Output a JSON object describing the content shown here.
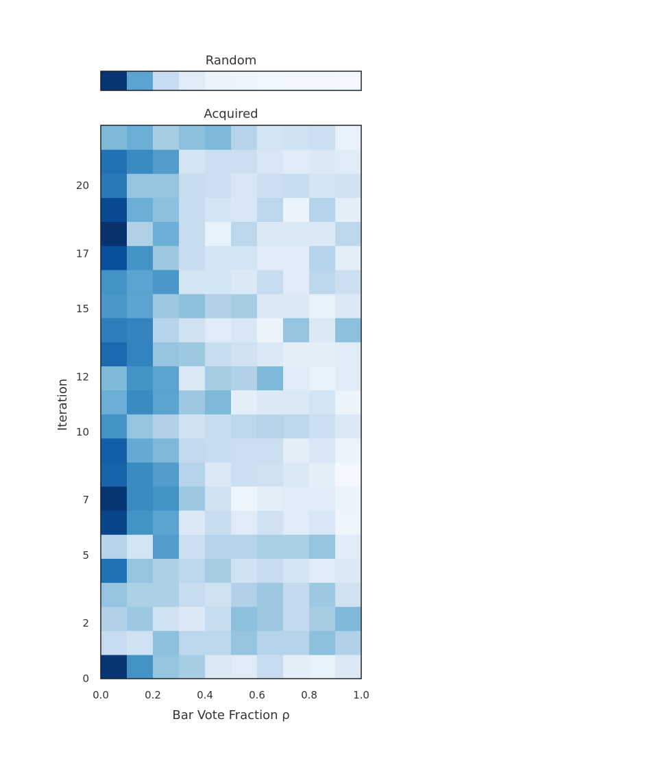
{
  "chart_data": [
    {
      "type": "heatmap",
      "title": "Random",
      "x_edges": [
        0.0,
        0.1,
        0.2,
        0.3,
        0.4,
        0.5,
        0.6,
        0.7,
        0.8,
        0.9,
        1.0
      ],
      "rows": [
        [
          0.98,
          0.55,
          0.25,
          0.12,
          0.06,
          0.05,
          0.04,
          0.03,
          0.03,
          0.02
        ]
      ],
      "colormap": "Blues"
    },
    {
      "type": "heatmap",
      "title": "Acquired",
      "xlabel": "Bar Vote Fraction ρ",
      "ylabel": "Iteration",
      "x_edges": [
        0.0,
        0.1,
        0.2,
        0.3,
        0.4,
        0.5,
        0.6,
        0.7,
        0.8,
        0.9,
        1.0
      ],
      "xlim": [
        0.0,
        1.0
      ],
      "ylim": [
        0,
        22
      ],
      "xticks": [
        "0.0",
        "0.2",
        "0.4",
        "0.6",
        "0.8",
        "1.0"
      ],
      "xtick_values": [
        0.0,
        0.2,
        0.4,
        0.6,
        0.8,
        1.0
      ],
      "yticks": [
        "0",
        "2",
        "5",
        "7",
        "10",
        "12",
        "15",
        "17",
        "20"
      ],
      "ytick_values": [
        0,
        2.2,
        4.9,
        7.1,
        9.8,
        12,
        14.7,
        16.9,
        19.6
      ],
      "colormap": "Blues",
      "rows": [
        [
          0.98,
          0.62,
          0.4,
          0.35,
          0.15,
          0.12,
          0.25,
          0.1,
          0.08,
          0.14
        ],
        [
          0.25,
          0.2,
          0.42,
          0.28,
          0.28,
          0.4,
          0.3,
          0.3,
          0.42,
          0.32
        ],
        [
          0.32,
          0.38,
          0.2,
          0.14,
          0.24,
          0.42,
          0.38,
          0.26,
          0.35,
          0.45
        ],
        [
          0.4,
          0.33,
          0.33,
          0.24,
          0.2,
          0.32,
          0.38,
          0.26,
          0.38,
          0.2
        ],
        [
          0.75,
          0.4,
          0.33,
          0.28,
          0.35,
          0.2,
          0.24,
          0.18,
          0.12,
          0.14
        ],
        [
          0.3,
          0.18,
          0.58,
          0.22,
          0.3,
          0.3,
          0.34,
          0.34,
          0.4,
          0.12
        ],
        [
          0.92,
          0.62,
          0.55,
          0.14,
          0.24,
          0.12,
          0.2,
          0.12,
          0.16,
          0.05
        ],
        [
          0.98,
          0.65,
          0.62,
          0.38,
          0.2,
          0.05,
          0.1,
          0.12,
          0.12,
          0.06
        ],
        [
          0.8,
          0.65,
          0.58,
          0.3,
          0.14,
          0.22,
          0.2,
          0.14,
          0.1,
          0.02
        ],
        [
          0.82,
          0.52,
          0.45,
          0.26,
          0.24,
          0.22,
          0.22,
          0.1,
          0.16,
          0.06
        ],
        [
          0.62,
          0.4,
          0.32,
          0.2,
          0.24,
          0.28,
          0.3,
          0.28,
          0.22,
          0.14
        ],
        [
          0.5,
          0.65,
          0.55,
          0.38,
          0.45,
          0.1,
          0.14,
          0.14,
          0.18,
          0.06
        ],
        [
          0.45,
          0.62,
          0.55,
          0.14,
          0.35,
          0.32,
          0.45,
          0.12,
          0.08,
          0.12
        ],
        [
          0.78,
          0.68,
          0.4,
          0.38,
          0.24,
          0.2,
          0.14,
          0.1,
          0.1,
          0.12
        ],
        [
          0.7,
          0.68,
          0.3,
          0.2,
          0.12,
          0.16,
          0.06,
          0.4,
          0.14,
          0.42
        ],
        [
          0.6,
          0.55,
          0.38,
          0.42,
          0.32,
          0.35,
          0.14,
          0.14,
          0.08,
          0.14
        ],
        [
          0.62,
          0.55,
          0.6,
          0.18,
          0.18,
          0.14,
          0.24,
          0.12,
          0.28,
          0.22
        ],
        [
          0.88,
          0.62,
          0.38,
          0.24,
          0.18,
          0.18,
          0.12,
          0.12,
          0.3,
          0.1
        ],
        [
          0.99,
          0.32,
          0.5,
          0.24,
          0.08,
          0.28,
          0.14,
          0.14,
          0.14,
          0.28
        ],
        [
          0.9,
          0.5,
          0.42,
          0.24,
          0.18,
          0.16,
          0.28,
          0.06,
          0.3,
          0.1
        ],
        [
          0.72,
          0.4,
          0.4,
          0.24,
          0.22,
          0.16,
          0.22,
          0.24,
          0.18,
          0.2
        ],
        [
          0.75,
          0.65,
          0.58,
          0.18,
          0.22,
          0.22,
          0.16,
          0.12,
          0.14,
          0.12
        ],
        [
          0.45,
          0.5,
          0.35,
          0.42,
          0.45,
          0.3,
          0.18,
          0.2,
          0.22,
          0.08
        ]
      ]
    }
  ]
}
